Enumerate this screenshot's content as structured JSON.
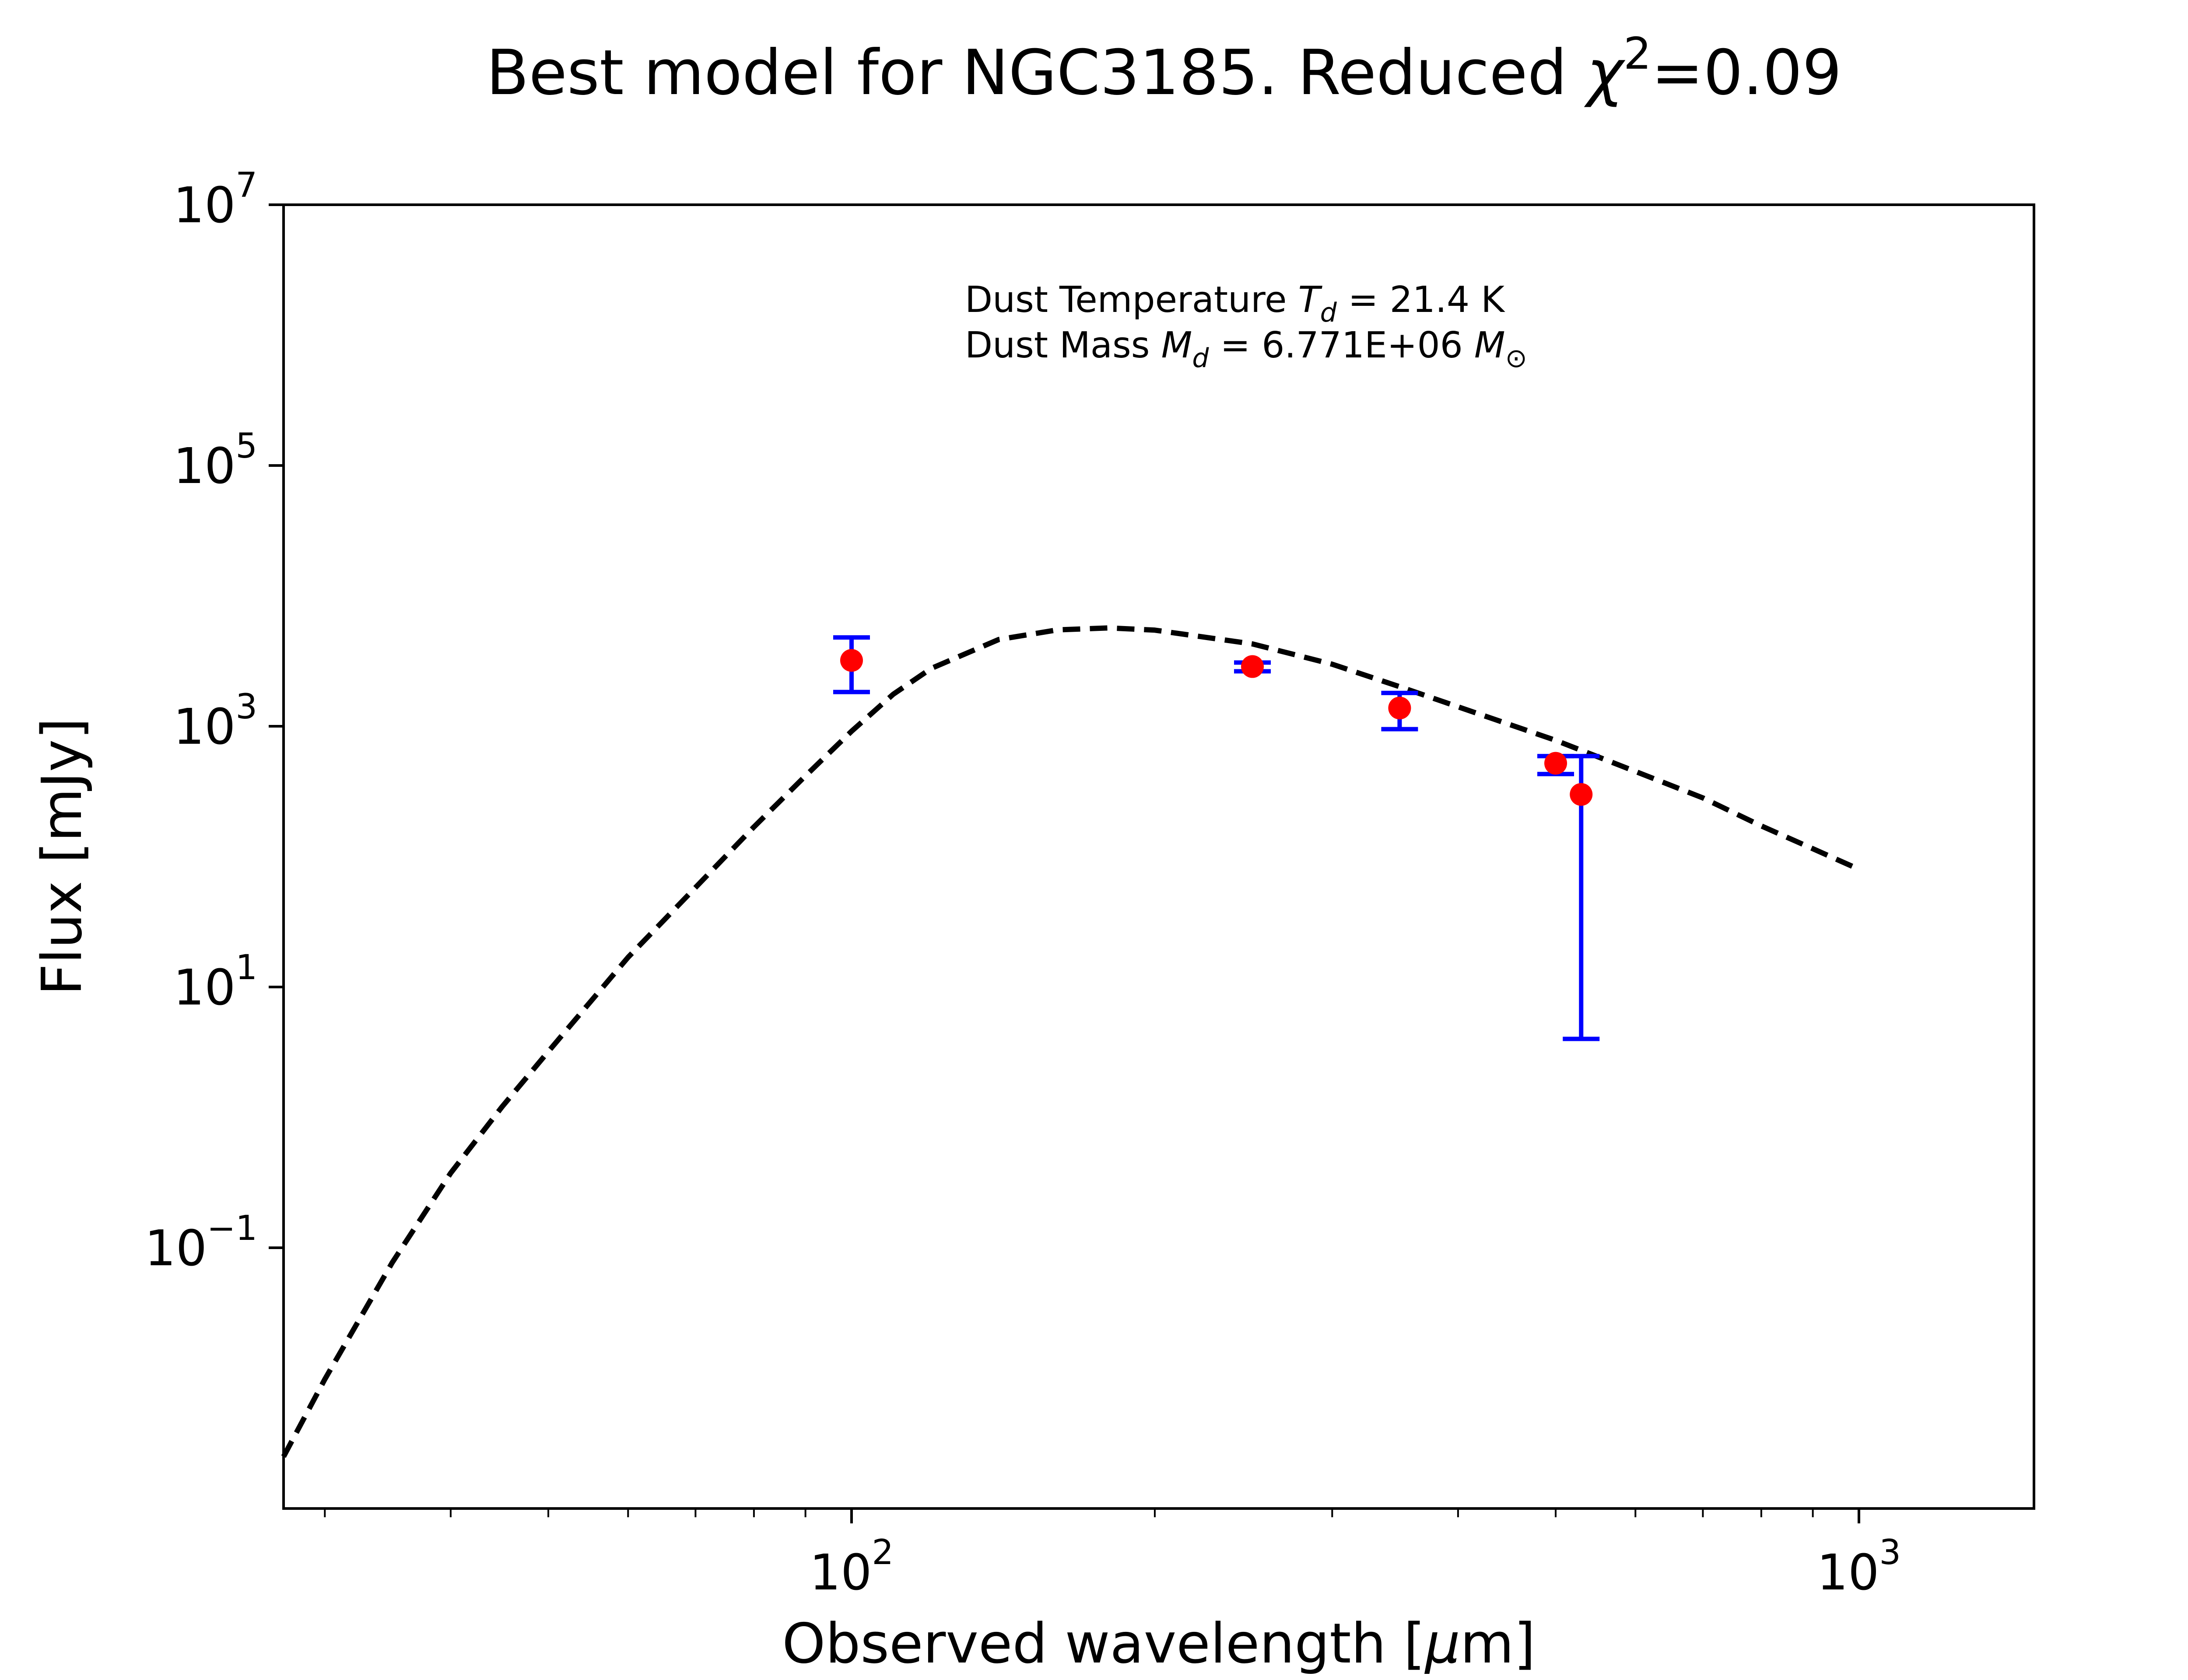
{
  "chart_data": {
    "type": "line",
    "title": {
      "prefix": "Best model for NGC3185. Reduced ",
      "chi": "χ",
      "chi_power": "2",
      "suffix": "=0.09"
    },
    "xlabel": {
      "prefix": "Observed wavelength [",
      "mu": "μ",
      "suffix": "m]"
    },
    "ylabel": "Flux [mJy]",
    "x_scale": "log",
    "y_scale": "log",
    "xlim": [
      27.3,
      1492
    ],
    "ylim": [
      0.001,
      10000000
    ],
    "x_ticks": [
      {
        "value": 100,
        "base": "10",
        "exp": "2"
      },
      {
        "value": 1000,
        "base": "10",
        "exp": "3"
      }
    ],
    "y_ticks": [
      {
        "value": 10000000,
        "base": "10",
        "exp": "7"
      },
      {
        "value": 100000,
        "base": "10",
        "exp": "5"
      },
      {
        "value": 1000,
        "base": "10",
        "exp": "3"
      },
      {
        "value": 10,
        "base": "10",
        "exp": "1"
      },
      {
        "value": 0.1,
        "base": "10",
        "exp": "−1"
      }
    ],
    "grid": false,
    "model": {
      "style": "dashed",
      "color": "#000000",
      "x": [
        27.3,
        30,
        35,
        40,
        45,
        50,
        60,
        70,
        80,
        90,
        100,
        110,
        120,
        140,
        160,
        180,
        200,
        250,
        300,
        350,
        400,
        500,
        600,
        700,
        800,
        900,
        1000
      ],
      "y": [
        0.0025,
        0.0098,
        0.077,
        0.374,
        1.21,
        3.2,
        16.9,
        58,
        169,
        416,
        916,
        1760,
        2780,
        4630,
        5480,
        5680,
        5460,
        4280,
        2990,
        2010,
        1410,
        780,
        450,
        282,
        172,
        115,
        80
      ]
    },
    "observations": {
      "point_color": "#ff0000",
      "errorbar_color": "#0000ff",
      "points": [
        {
          "x": 100,
          "y": 3200,
          "y_low": 1830,
          "y_high": 4800
        },
        {
          "x": 250,
          "y": 2870,
          "y_low": 2640,
          "y_high": 3080
        },
        {
          "x": 350,
          "y": 1380,
          "y_low": 950,
          "y_high": 1800
        },
        {
          "x": 500,
          "y": 520,
          "y_low": 430,
          "y_high": 590
        },
        {
          "x": 530,
          "y": 300,
          "y_low": 4,
          "y_high": 590
        }
      ]
    },
    "annotation": {
      "temp_prefix": "Dust Temperature ",
      "temp_symbol": "T",
      "temp_sub": "d",
      "temp_suffix": " = 21.4 K",
      "mass_prefix": "Dust Mass ",
      "mass_symbol": "M",
      "mass_sub": "d",
      "mass_suffix": " = 6.771E+06 ",
      "sun_symbol": "M",
      "sun_sub": "⊙"
    }
  }
}
